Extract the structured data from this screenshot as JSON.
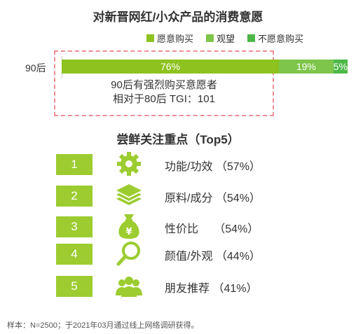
{
  "title": "对新晋网红/小众产品的消费意愿",
  "legend": [
    {
      "label": "愿意购买",
      "color": "#8dc21f"
    },
    {
      "label": "观望",
      "color": "#7ec64a"
    },
    {
      "label": "不愿意购买",
      "color": "#4db848"
    }
  ],
  "chart_data": {
    "type": "bar",
    "orientation": "horizontal-stacked",
    "categories": [
      "90后"
    ],
    "series": [
      {
        "name": "愿意购买",
        "values": [
          76
        ],
        "label": "76%"
      },
      {
        "name": "观望",
        "values": [
          19
        ],
        "label": "19%"
      },
      {
        "name": "不愿意购买",
        "values": [
          5
        ],
        "label": "5%"
      }
    ],
    "xlim": [
      0,
      100
    ]
  },
  "note": {
    "line1": "90后有强烈购买意愿者",
    "line2": "相对于80后 TGI：101"
  },
  "ranking": {
    "title": "尝鲜关注重点（Top5）",
    "items": [
      {
        "rank": "1",
        "label": "功能/功效 （57%）",
        "icon": "gear-icon"
      },
      {
        "rank": "2",
        "label": "原料/成分 （54%）",
        "icon": "layers-icon"
      },
      {
        "rank": "3",
        "label": "性价比     （54%）",
        "icon": "money-bag-icon"
      },
      {
        "rank": "4",
        "label": "颜值/外观 （44%）",
        "icon": "magnifier-icon"
      },
      {
        "rank": "5",
        "label": "朋友推荐 （41%）",
        "icon": "people-icon"
      }
    ]
  },
  "colors": {
    "accent": "#9ccc30",
    "dash": "#ee8d97"
  },
  "footnote": "样本：N=2500；于2021年03月通过线上网络调研获得。"
}
